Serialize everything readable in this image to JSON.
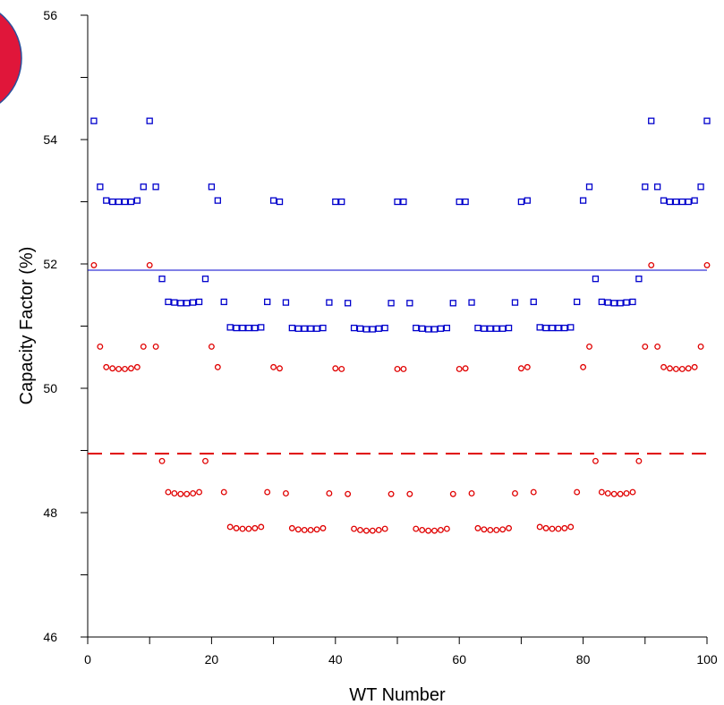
{
  "chart_data": {
    "type": "scatter",
    "xlabel": "WT Number",
    "ylabel": "Capacity Factor  (%)",
    "xlim": [
      0,
      100
    ],
    "ylim": [
      46,
      56
    ],
    "x_ticks": [
      0,
      20,
      40,
      60,
      80,
      100
    ],
    "y_ticks": [
      46,
      48,
      50,
      52,
      54,
      56
    ],
    "x_tick_labels": [
      "0",
      "20",
      "40",
      "60",
      "80",
      "100"
    ],
    "y_tick_labels": [
      "46",
      "48",
      "50",
      "52",
      "54",
      "56"
    ],
    "grid": false,
    "legend": "none",
    "series": [
      {
        "marker": "square",
        "color": "#0000cc",
        "x": [
          1,
          2,
          3,
          4,
          5,
          6,
          7,
          8,
          9,
          10,
          11,
          12,
          13,
          14,
          15,
          16,
          17,
          18,
          19,
          20,
          21,
          22,
          23,
          24,
          25,
          26,
          27,
          28,
          29,
          30,
          31,
          32,
          33,
          34,
          35,
          36,
          37,
          38,
          39,
          40,
          41,
          42,
          43,
          44,
          45,
          46,
          47,
          48,
          49,
          50,
          51,
          52,
          53,
          54,
          55,
          56,
          57,
          58,
          59,
          60,
          61,
          62,
          63,
          64,
          65,
          66,
          67,
          68,
          69,
          70,
          71,
          72,
          73,
          74,
          75,
          76,
          77,
          78,
          79,
          80,
          81,
          82,
          83,
          84,
          85,
          86,
          87,
          88,
          89,
          90,
          91,
          92,
          93,
          94,
          95,
          96,
          97,
          98,
          99,
          100
        ],
        "y": [
          54.3,
          53.24,
          53.02,
          53.0,
          53.0,
          53.0,
          53.0,
          53.02,
          53.24,
          54.3,
          53.24,
          51.76,
          51.39,
          51.38,
          51.37,
          51.37,
          51.38,
          51.39,
          51.76,
          53.24,
          53.02,
          51.39,
          50.98,
          50.97,
          50.97,
          50.97,
          50.97,
          50.98,
          51.39,
          53.02,
          53.0,
          51.38,
          50.97,
          50.96,
          50.96,
          50.96,
          50.96,
          50.97,
          51.38,
          53.0,
          53.0,
          51.37,
          50.97,
          50.96,
          50.95,
          50.95,
          50.96,
          50.97,
          51.37,
          53.0,
          53.0,
          51.37,
          50.97,
          50.96,
          50.95,
          50.95,
          50.96,
          50.97,
          51.37,
          53.0,
          53.0,
          51.38,
          50.97,
          50.96,
          50.96,
          50.96,
          50.96,
          50.97,
          51.38,
          53.0,
          53.02,
          51.39,
          50.98,
          50.97,
          50.97,
          50.97,
          50.97,
          50.98,
          51.39,
          53.02,
          53.24,
          51.76,
          51.39,
          51.38,
          51.37,
          51.37,
          51.38,
          51.39,
          51.76,
          53.24,
          54.3,
          53.24,
          53.02,
          53.0,
          53.0,
          53.0,
          53.0,
          53.02,
          53.24,
          54.3
        ]
      },
      {
        "marker": "circle",
        "color": "#e00000",
        "x": [
          1,
          2,
          3,
          4,
          5,
          6,
          7,
          8,
          9,
          10,
          11,
          12,
          13,
          14,
          15,
          16,
          17,
          18,
          19,
          20,
          21,
          22,
          23,
          24,
          25,
          26,
          27,
          28,
          29,
          30,
          31,
          32,
          33,
          34,
          35,
          36,
          37,
          38,
          39,
          40,
          41,
          42,
          43,
          44,
          45,
          46,
          47,
          48,
          49,
          50,
          51,
          52,
          53,
          54,
          55,
          56,
          57,
          58,
          59,
          60,
          61,
          62,
          63,
          64,
          65,
          66,
          67,
          68,
          69,
          70,
          71,
          72,
          73,
          74,
          75,
          76,
          77,
          78,
          79,
          80,
          81,
          82,
          83,
          84,
          85,
          86,
          87,
          88,
          89,
          90,
          91,
          92,
          93,
          94,
          95,
          96,
          97,
          98,
          99,
          100
        ],
        "y": [
          51.98,
          50.67,
          50.34,
          50.32,
          50.31,
          50.31,
          50.32,
          50.34,
          50.67,
          51.98,
          50.67,
          48.83,
          48.33,
          48.31,
          48.3,
          48.3,
          48.31,
          48.33,
          48.83,
          50.67,
          50.34,
          48.33,
          47.77,
          47.75,
          47.74,
          47.74,
          47.75,
          47.77,
          48.33,
          50.34,
          50.32,
          48.31,
          47.75,
          47.73,
          47.72,
          47.72,
          47.73,
          47.75,
          48.31,
          50.32,
          50.31,
          48.3,
          47.74,
          47.72,
          47.71,
          47.71,
          47.72,
          47.74,
          48.3,
          50.31,
          50.31,
          48.3,
          47.74,
          47.72,
          47.71,
          47.71,
          47.72,
          47.74,
          48.3,
          50.31,
          50.32,
          48.31,
          47.75,
          47.73,
          47.72,
          47.72,
          47.73,
          47.75,
          48.31,
          50.32,
          50.34,
          48.33,
          47.77,
          47.75,
          47.74,
          47.74,
          47.75,
          47.77,
          48.33,
          50.34,
          50.67,
          48.83,
          48.33,
          48.31,
          48.3,
          48.3,
          48.31,
          48.33,
          48.83,
          50.67,
          51.98,
          50.67,
          50.34,
          50.32,
          50.31,
          50.31,
          50.32,
          50.34,
          50.67,
          51.98
        ]
      }
    ],
    "reference_lines": [
      {
        "y": 51.9,
        "color": "#0000cc",
        "style": "solid"
      },
      {
        "y": 48.95,
        "color": "#e00000",
        "style": "dashed"
      }
    ]
  },
  "decoration": {
    "circle_fill": "#e0163a",
    "circle_stroke": "#2a4f9c"
  }
}
